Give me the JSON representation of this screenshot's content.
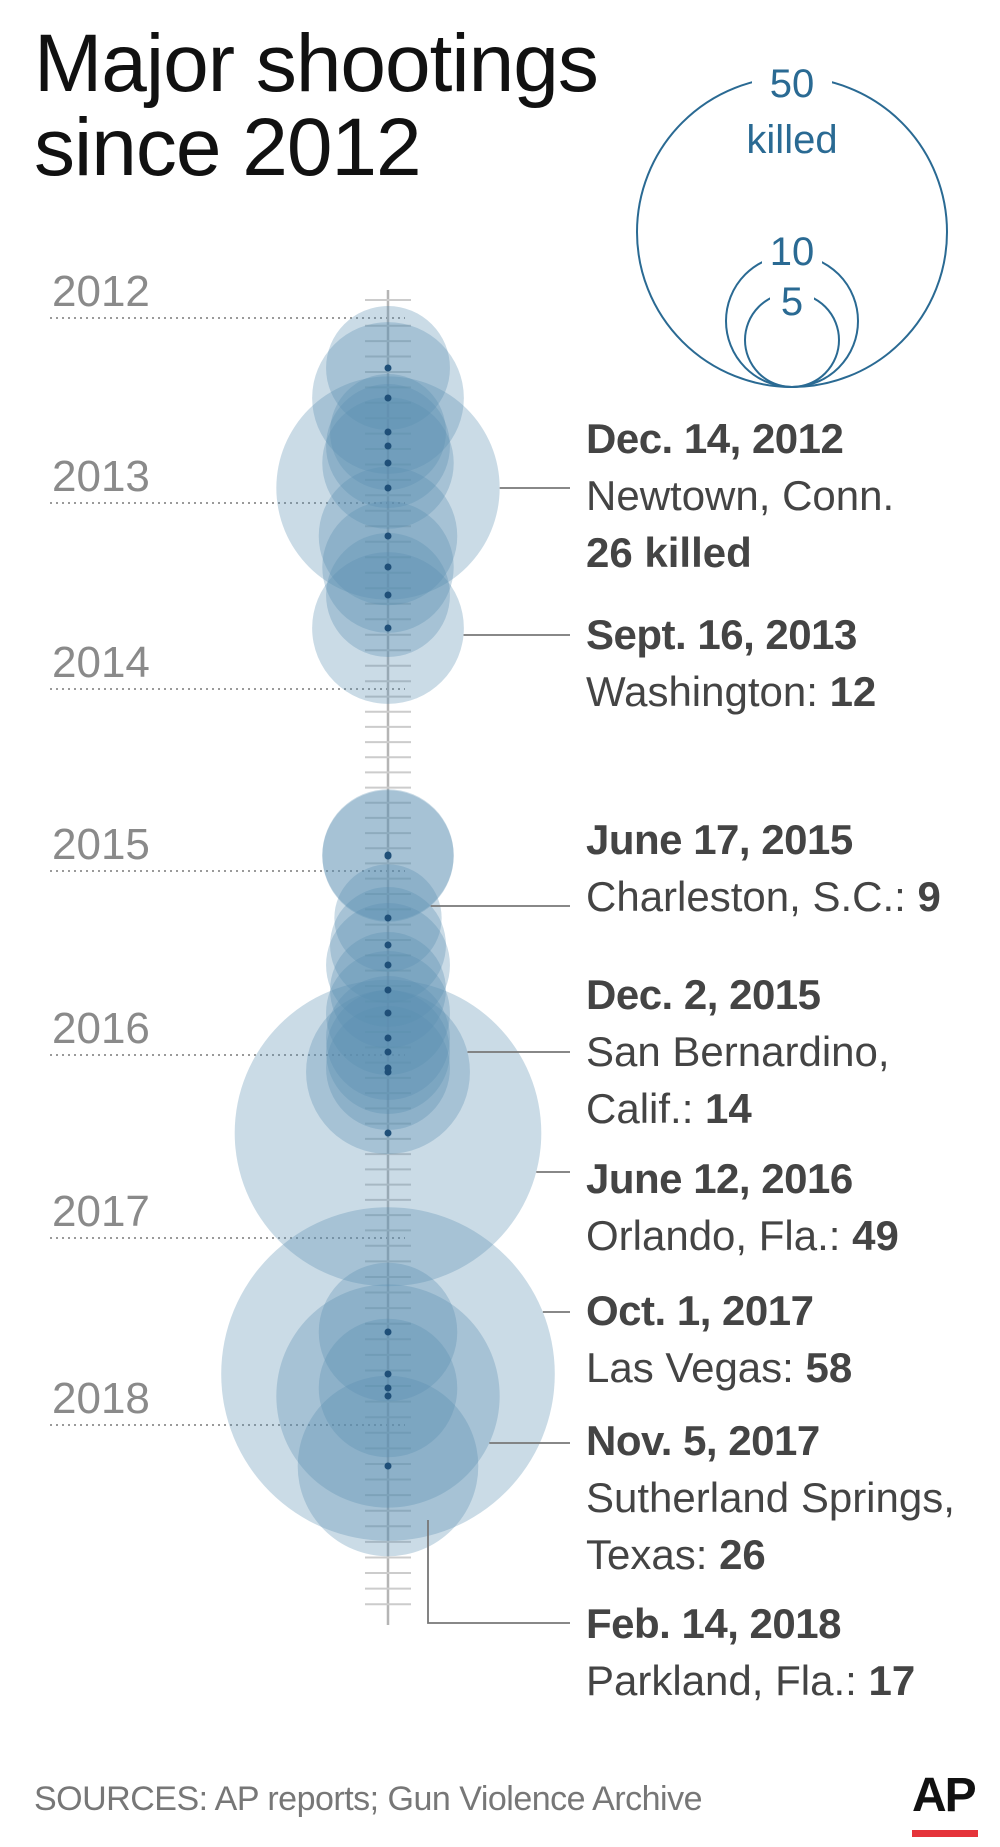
{
  "title": {
    "line1": "Major shootings",
    "line2": "since 2012"
  },
  "legend": {
    "big_value": "50",
    "big_unit": "killed",
    "mid_value": "10",
    "small_value": "5"
  },
  "chart_data": {
    "type": "bubble-timeline",
    "title": "Major shootings since 2012",
    "axis": "time (vertical)",
    "year_labels": [
      "2012",
      "2013",
      "2014",
      "2015",
      "2016",
      "2017",
      "2018"
    ],
    "size_measure": "killed",
    "reference_sizes": [
      5,
      10,
      50
    ],
    "labeled_events": [
      {
        "date": "Dec. 14, 2012",
        "place": "Newtown, Conn.",
        "killed": 26
      },
      {
        "date": "Sept. 16, 2013",
        "place": "Washington",
        "killed": 12
      },
      {
        "date": "June 17, 2015",
        "place": "Charleston, S.C.",
        "killed": 9
      },
      {
        "date": "Dec. 2, 2015",
        "place": "San Bernardino, Calif.",
        "killed": 14
      },
      {
        "date": "June 12, 2016",
        "place": "Orlando, Fla.",
        "killed": 49
      },
      {
        "date": "Oct. 1, 2017",
        "place": "Las Vegas",
        "killed": 58
      },
      {
        "date": "Nov. 5, 2017",
        "place": "Sutherland Springs, Texas",
        "killed": 26
      },
      {
        "date": "Feb. 14, 2018",
        "place": "Parkland, Fla.",
        "killed": 17
      }
    ],
    "other_events_killed": [
      8,
      12,
      7,
      8,
      9,
      10,
      9,
      8,
      9,
      6,
      7,
      8,
      7,
      8,
      8,
      8,
      8,
      10,
      10
    ]
  },
  "labels": {
    "e1": {
      "date": "Dec. 14, 2012",
      "place": "Newtown, Conn.",
      "killed_text": "26 killed"
    },
    "e2": {
      "date": "Sept. 16, 2013",
      "place": "Washington: ",
      "num": "12"
    },
    "e3": {
      "date": "June 17, 2015",
      "place": "Charleston, S.C.: ",
      "num": "9"
    },
    "e4": {
      "date": "Dec. 2, 2015",
      "place1": "San Bernardino,",
      "place2": "Calif.: ",
      "num": "14"
    },
    "e5": {
      "date": "June 12, 2016",
      "place": "Orlando, Fla.: ",
      "num": "49"
    },
    "e6": {
      "date": "Oct. 1, 2017",
      "place": "Las Vegas: ",
      "num": "58"
    },
    "e7": {
      "date": "Nov. 5, 2017",
      "place1": "Sutherland Springs,",
      "place2": "Texas: ",
      "num": "26"
    },
    "e8": {
      "date": "Feb. 14, 2018",
      "place": "Parkland, Fla.: ",
      "num": "17"
    }
  },
  "source": "SOURCES: AP reports; Gun Violence Archive",
  "logo": "AP",
  "colors": {
    "bubble": "#5b8fb0",
    "legend": "#2a6a93",
    "dot": "#1f4f78",
    "logo_bar": "#e5343b"
  }
}
